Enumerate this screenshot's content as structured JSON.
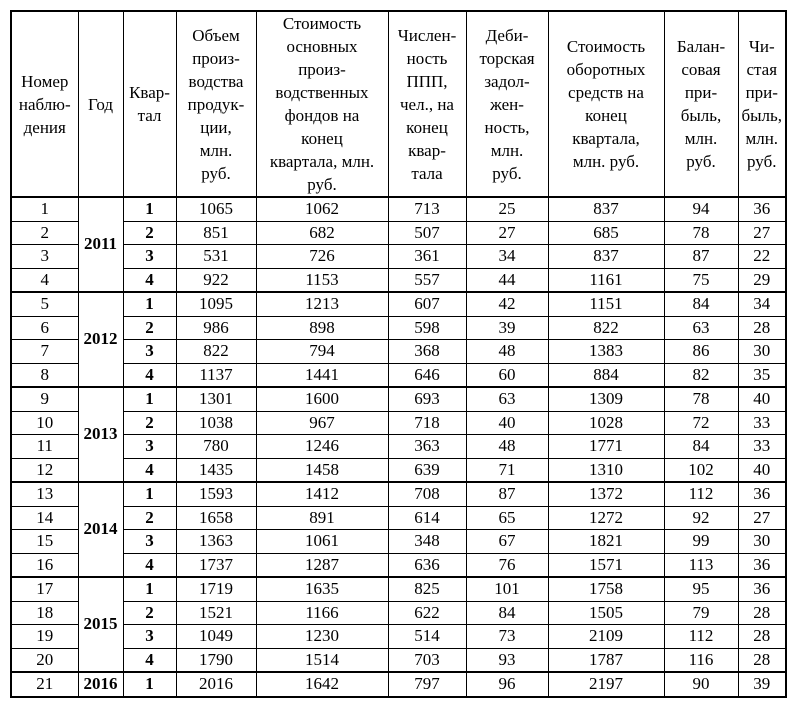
{
  "table": {
    "columns": [
      {
        "id": "obs",
        "label": "Номер\nнаблю-\nдения"
      },
      {
        "id": "year",
        "label": "Год"
      },
      {
        "id": "quarter",
        "label": "Квар-\nтал"
      },
      {
        "id": "volume",
        "label": "Объем\nпроиз-\nводства\nпродук-\nции,\nмлн.\nруб."
      },
      {
        "id": "fixed-assets",
        "label": "Стоимость\nосновных\nпроиз-\nводственных\nфондов на\nконец\nквартала, млн.\nруб."
      },
      {
        "id": "personnel",
        "label": "Числен-\nность\nППП,\nчел., на\nконец\nквар-\nтала"
      },
      {
        "id": "receivables",
        "label": "Деби-\nторская\nзадол-\nжен-\nность,\nмлн.\nруб."
      },
      {
        "id": "working-capital",
        "label": "Стоимость\nоборотных\nсредств на\nконец\nквартала,\nмлн. руб."
      },
      {
        "id": "balance-profit",
        "label": "Балан-\nсовая\nпри-\nбыль,\nмлн.\nруб."
      },
      {
        "id": "net-profit",
        "label": "Чи-\nстая\nпри-\nбыль,\nмлн.\nруб."
      }
    ],
    "groups": [
      {
        "year": "2011",
        "rows": [
          {
            "obs": "1",
            "quarter": "1",
            "values": [
              "1065",
              "1062",
              "713",
              "25",
              "837",
              "94",
              "36"
            ]
          },
          {
            "obs": "2",
            "quarter": "2",
            "values": [
              "851",
              "682",
              "507",
              "27",
              "685",
              "78",
              "27"
            ]
          },
          {
            "obs": "3",
            "quarter": "3",
            "values": [
              "531",
              "726",
              "361",
              "34",
              "837",
              "87",
              "22"
            ]
          },
          {
            "obs": "4",
            "quarter": "4",
            "values": [
              "922",
              "1153",
              "557",
              "44",
              "1161",
              "75",
              "29"
            ]
          }
        ]
      },
      {
        "year": "2012",
        "rows": [
          {
            "obs": "5",
            "quarter": "1",
            "values": [
              "1095",
              "1213",
              "607",
              "42",
              "1151",
              "84",
              "34"
            ]
          },
          {
            "obs": "6",
            "quarter": "2",
            "values": [
              "986",
              "898",
              "598",
              "39",
              "822",
              "63",
              "28"
            ]
          },
          {
            "obs": "7",
            "quarter": "3",
            "values": [
              "822",
              "794",
              "368",
              "48",
              "1383",
              "86",
              "30"
            ]
          },
          {
            "obs": "8",
            "quarter": "4",
            "values": [
              "1137",
              "1441",
              "646",
              "60",
              "884",
              "82",
              "35"
            ]
          }
        ]
      },
      {
        "year": "2013",
        "rows": [
          {
            "obs": "9",
            "quarter": "1",
            "values": [
              "1301",
              "1600",
              "693",
              "63",
              "1309",
              "78",
              "40"
            ]
          },
          {
            "obs": "10",
            "quarter": "2",
            "values": [
              "1038",
              "967",
              "718",
              "40",
              "1028",
              "72",
              "33"
            ]
          },
          {
            "obs": "11",
            "quarter": "3",
            "values": [
              "780",
              "1246",
              "363",
              "48",
              "1771",
              "84",
              "33"
            ]
          },
          {
            "obs": "12",
            "quarter": "4",
            "values": [
              "1435",
              "1458",
              "639",
              "71",
              "1310",
              "102",
              "40"
            ]
          }
        ]
      },
      {
        "year": "2014",
        "rows": [
          {
            "obs": "13",
            "quarter": "1",
            "values": [
              "1593",
              "1412",
              "708",
              "87",
              "1372",
              "112",
              "36"
            ]
          },
          {
            "obs": "14",
            "quarter": "2",
            "values": [
              "1658",
              "891",
              "614",
              "65",
              "1272",
              "92",
              "27"
            ]
          },
          {
            "obs": "15",
            "quarter": "3",
            "values": [
              "1363",
              "1061",
              "348",
              "67",
              "1821",
              "99",
              "30"
            ]
          },
          {
            "obs": "16",
            "quarter": "4",
            "values": [
              "1737",
              "1287",
              "636",
              "76",
              "1571",
              "113",
              "36"
            ]
          }
        ]
      },
      {
        "year": "2015",
        "rows": [
          {
            "obs": "17",
            "quarter": "1",
            "values": [
              "1719",
              "1635",
              "825",
              "101",
              "1758",
              "95",
              "36"
            ]
          },
          {
            "obs": "18",
            "quarter": "2",
            "values": [
              "1521",
              "1166",
              "622",
              "84",
              "1505",
              "79",
              "28"
            ]
          },
          {
            "obs": "19",
            "quarter": "3",
            "values": [
              "1049",
              "1230",
              "514",
              "73",
              "2109",
              "112",
              "28"
            ]
          },
          {
            "obs": "20",
            "quarter": "4",
            "values": [
              "1790",
              "1514",
              "703",
              "93",
              "1787",
              "116",
              "28"
            ]
          }
        ]
      },
      {
        "year": "2016",
        "rows": [
          {
            "obs": "21",
            "quarter": "1",
            "values": [
              "2016",
              "1642",
              "797",
              "96",
              "2197",
              "90",
              "39"
            ]
          }
        ]
      }
    ]
  }
}
